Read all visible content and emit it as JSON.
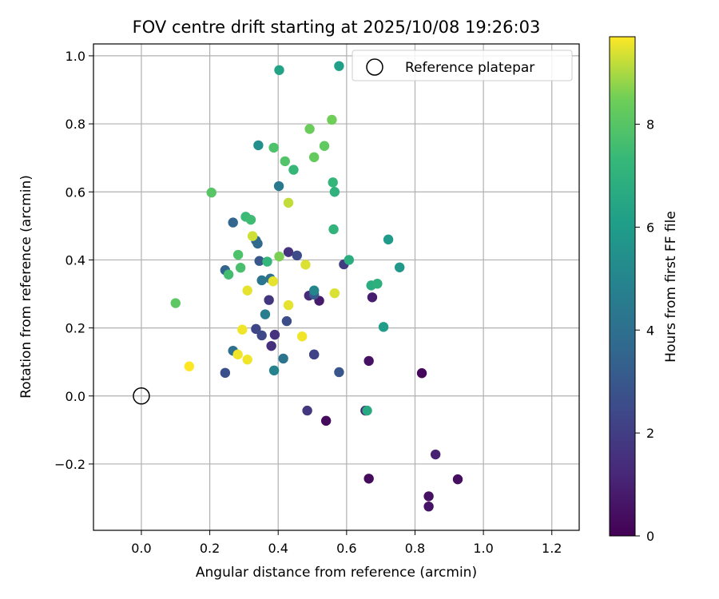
{
  "chart_data": {
    "type": "scatter",
    "title": "FOV centre drift starting at 2025/10/08 19:26:03",
    "xlabel": "Angular distance from reference (arcmin)",
    "ylabel": "Rotation from reference (arcmin)",
    "xlim": [
      -0.14,
      1.28
    ],
    "ylim": [
      -0.395,
      1.035
    ],
    "xticks": [
      0.0,
      0.2,
      0.4,
      0.6,
      0.8,
      1.0,
      1.2
    ],
    "xtick_labels": [
      "0.0",
      "0.2",
      "0.4",
      "0.6",
      "0.8",
      "1.0",
      "1.2"
    ],
    "yticks": [
      -0.2,
      0.0,
      0.2,
      0.4,
      0.6,
      0.8,
      1.0
    ],
    "ytick_labels": [
      "−0.2",
      "0.0",
      "0.2",
      "0.4",
      "0.6",
      "0.8",
      "1.0"
    ],
    "grid": true,
    "legend": {
      "label": "Reference platepar",
      "location": "top-right"
    },
    "reference_point": {
      "x": 0.0,
      "y": 0.0
    },
    "colorbar": {
      "label": "Hours from first FF file",
      "colormap": "viridis",
      "range": [
        0,
        9.7
      ],
      "ticks": [
        0,
        2,
        4,
        6,
        8
      ],
      "tick_labels": [
        "0",
        "2",
        "4",
        "6",
        "8"
      ]
    },
    "points": [
      {
        "x": 0.54,
        "y": -0.073,
        "c": 0.3
      },
      {
        "x": 0.665,
        "y": -0.243,
        "c": 0.3
      },
      {
        "x": 0.925,
        "y": -0.245,
        "c": 0.4
      },
      {
        "x": 0.84,
        "y": -0.295,
        "c": 0.5
      },
      {
        "x": 0.84,
        "y": -0.325,
        "c": 0.6
      },
      {
        "x": 0.82,
        "y": 0.067,
        "c": 0.2
      },
      {
        "x": 0.665,
        "y": 0.103,
        "c": 0.5
      },
      {
        "x": 0.52,
        "y": 0.28,
        "c": 0.8
      },
      {
        "x": 0.675,
        "y": 0.29,
        "c": 0.9
      },
      {
        "x": 0.86,
        "y": -0.172,
        "c": 1.0
      },
      {
        "x": 0.655,
        "y": -0.043,
        "c": 1.2
      },
      {
        "x": 0.49,
        "y": 0.295,
        "c": 1.3
      },
      {
        "x": 0.38,
        "y": 0.147,
        "c": 1.5
      },
      {
        "x": 0.39,
        "y": 0.18,
        "c": 1.6
      },
      {
        "x": 0.43,
        "y": 0.423,
        "c": 1.6
      },
      {
        "x": 0.373,
        "y": 0.282,
        "c": 1.7
      },
      {
        "x": 0.485,
        "y": -0.043,
        "c": 1.8
      },
      {
        "x": 0.592,
        "y": 0.387,
        "c": 1.9
      },
      {
        "x": 0.505,
        "y": 0.122,
        "c": 2.0
      },
      {
        "x": 0.505,
        "y": 0.122,
        "c": 2.2
      },
      {
        "x": 0.335,
        "y": 0.197,
        "c": 2.3
      },
      {
        "x": 0.352,
        "y": 0.178,
        "c": 2.4
      },
      {
        "x": 0.455,
        "y": 0.413,
        "c": 2.5
      },
      {
        "x": 0.425,
        "y": 0.22,
        "c": 2.6
      },
      {
        "x": 0.245,
        "y": 0.068,
        "c": 2.7
      },
      {
        "x": 0.578,
        "y": 0.07,
        "c": 2.9
      },
      {
        "x": 0.345,
        "y": 0.397,
        "c": 3.0
      },
      {
        "x": 0.505,
        "y": 0.298,
        "c": 3.1
      },
      {
        "x": 0.245,
        "y": 0.37,
        "c": 3.5
      },
      {
        "x": 0.268,
        "y": 0.51,
        "c": 3.6
      },
      {
        "x": 0.34,
        "y": 0.448,
        "c": 3.7
      },
      {
        "x": 0.335,
        "y": 0.457,
        "c": 3.8
      },
      {
        "x": 0.377,
        "y": 0.345,
        "c": 4.0
      },
      {
        "x": 0.268,
        "y": 0.133,
        "c": 4.0
      },
      {
        "x": 0.415,
        "y": 0.11,
        "c": 4.2
      },
      {
        "x": 0.352,
        "y": 0.34,
        "c": 4.3
      },
      {
        "x": 0.402,
        "y": 0.617,
        "c": 4.4
      },
      {
        "x": 0.362,
        "y": 0.24,
        "c": 4.6
      },
      {
        "x": 0.388,
        "y": 0.075,
        "c": 4.9
      },
      {
        "x": 0.505,
        "y": 0.31,
        "c": 5.0
      },
      {
        "x": 0.342,
        "y": 0.737,
        "c": 5.4
      },
      {
        "x": 0.755,
        "y": 0.378,
        "c": 5.8
      },
      {
        "x": 0.722,
        "y": 0.46,
        "c": 5.9
      },
      {
        "x": 0.708,
        "y": 0.203,
        "c": 6.0
      },
      {
        "x": 0.578,
        "y": 0.97,
        "c": 6.1
      },
      {
        "x": 0.403,
        "y": 0.958,
        "c": 6.3
      },
      {
        "x": 0.66,
        "y": -0.043,
        "c": 6.6
      },
      {
        "x": 0.607,
        "y": 0.4,
        "c": 6.8
      },
      {
        "x": 0.672,
        "y": 0.325,
        "c": 6.8
      },
      {
        "x": 0.69,
        "y": 0.33,
        "c": 6.9
      },
      {
        "x": 0.565,
        "y": 0.6,
        "c": 7.0
      },
      {
        "x": 0.562,
        "y": 0.49,
        "c": 7.1
      },
      {
        "x": 0.56,
        "y": 0.628,
        "c": 7.2
      },
      {
        "x": 0.368,
        "y": 0.395,
        "c": 7.2
      },
      {
        "x": 0.445,
        "y": 0.665,
        "c": 7.3
      },
      {
        "x": 0.305,
        "y": 0.527,
        "c": 7.4
      },
      {
        "x": 0.32,
        "y": 0.518,
        "c": 7.5
      },
      {
        "x": 0.255,
        "y": 0.357,
        "c": 7.6
      },
      {
        "x": 0.29,
        "y": 0.377,
        "c": 7.7
      },
      {
        "x": 0.283,
        "y": 0.415,
        "c": 7.8
      },
      {
        "x": 0.387,
        "y": 0.73,
        "c": 7.8
      },
      {
        "x": 0.42,
        "y": 0.69,
        "c": 7.9
      },
      {
        "x": 0.205,
        "y": 0.598,
        "c": 8.0
      },
      {
        "x": 0.1,
        "y": 0.273,
        "c": 8.1
      },
      {
        "x": 0.535,
        "y": 0.735,
        "c": 8.2
      },
      {
        "x": 0.505,
        "y": 0.702,
        "c": 8.3
      },
      {
        "x": 0.492,
        "y": 0.785,
        "c": 8.4
      },
      {
        "x": 0.557,
        "y": 0.812,
        "c": 8.5
      },
      {
        "x": 0.403,
        "y": 0.41,
        "c": 8.6
      },
      {
        "x": 0.43,
        "y": 0.568,
        "c": 9.2
      },
      {
        "x": 0.325,
        "y": 0.47,
        "c": 9.3
      },
      {
        "x": 0.48,
        "y": 0.386,
        "c": 9.4
      },
      {
        "x": 0.565,
        "y": 0.302,
        "c": 9.4
      },
      {
        "x": 0.43,
        "y": 0.267,
        "c": 9.5
      },
      {
        "x": 0.385,
        "y": 0.337,
        "c": 9.5
      },
      {
        "x": 0.31,
        "y": 0.31,
        "c": 9.5
      },
      {
        "x": 0.295,
        "y": 0.195,
        "c": 9.6
      },
      {
        "x": 0.47,
        "y": 0.175,
        "c": 9.6
      },
      {
        "x": 0.282,
        "y": 0.122,
        "c": 9.6
      },
      {
        "x": 0.31,
        "y": 0.107,
        "c": 9.6
      },
      {
        "x": 0.14,
        "y": 0.087,
        "c": 9.7
      }
    ]
  }
}
